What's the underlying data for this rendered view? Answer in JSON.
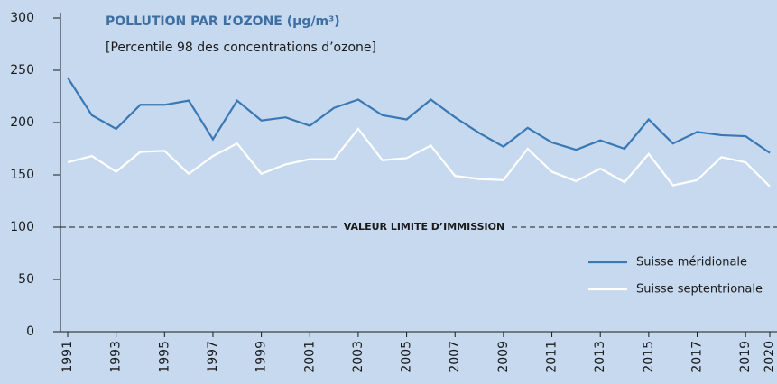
{
  "chart_data": {
    "type": "line",
    "title": "POLLUTION PAR L’OZONE (µg/m³)",
    "subtitle": "[Percentile 98 des concentrations d’ozone]",
    "x": [
      1991,
      1992,
      1993,
      1994,
      1995,
      1996,
      1997,
      1998,
      1999,
      2000,
      2001,
      2002,
      2003,
      2004,
      2005,
      2006,
      2007,
      2008,
      2009,
      2010,
      2011,
      2012,
      2013,
      2014,
      2015,
      2016,
      2017,
      2018,
      2019,
      2020
    ],
    "series": [
      {
        "name": "Suisse méridionale",
        "color": "#3a78b5",
        "values": [
          243,
          207,
          194,
          217,
          217,
          221,
          184,
          221,
          202,
          205,
          197,
          214,
          222,
          207,
          203,
          222,
          205,
          190,
          177,
          195,
          181,
          174,
          183,
          175,
          203,
          180,
          191,
          188,
          187,
          171
        ]
      },
      {
        "name": "Suisse septentrionale",
        "color": "#ffffff",
        "values": [
          162,
          168,
          153,
          172,
          173,
          151,
          168,
          180,
          151,
          160,
          165,
          165,
          194,
          164,
          166,
          178,
          149,
          146,
          145,
          175,
          153,
          144,
          156,
          143,
          170,
          140,
          145,
          167,
          162,
          139
        ]
      }
    ],
    "xlim": [
      1991,
      2020
    ],
    "xticks": [
      1991,
      1993,
      1995,
      1997,
      1999,
      2001,
      2003,
      2005,
      2007,
      2009,
      2011,
      2013,
      2015,
      2017,
      2019,
      2020
    ],
    "ylim": [
      0,
      300
    ],
    "yticks": [
      0,
      50,
      100,
      150,
      200,
      250,
      300
    ],
    "reference_line": {
      "value": 100,
      "label": "VALEUR LIMITE D’IMMISSION"
    },
    "legend": "lower right"
  }
}
